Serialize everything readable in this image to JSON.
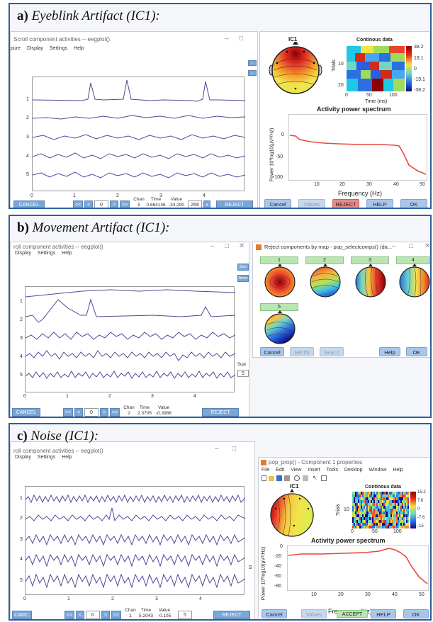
{
  "panel_a": {
    "title_prefix": "a)",
    "title": "Eyeblink Artifact (IC1):",
    "scroll_window": {
      "title": "Scroll component activities -- eegplot()",
      "menu": [
        "pure",
        "Display",
        "Settings",
        "Help"
      ],
      "trace_labels": [
        "1",
        "2",
        "3",
        "4",
        "5"
      ],
      "x_ticks": [
        "0",
        "1",
        "2",
        "3",
        "4"
      ],
      "cancel": "CANCEL",
      "nav": [
        "<<",
        "<",
        "0",
        ">",
        ">>"
      ],
      "stat_headers": [
        "Chan",
        "Time",
        "Value"
      ],
      "stat_values": [
        "5",
        "0.864136",
        "-33.290"
      ],
      "scale_value": "266",
      "reject": "REJECT"
    },
    "props_window": {
      "topo_title": "IC1",
      "continuous_title": "Continous data",
      "trials_label": "Trials",
      "time_label": "Time (ms)",
      "trials_ticks": [
        "10",
        "20"
      ],
      "time_ticks": [
        "0",
        "50",
        "100"
      ],
      "colorbar_ticks": [
        "38.2",
        "19.1",
        "0",
        "-19.1",
        "-38.2"
      ],
      "spectrum_title": "Activity power spectrum",
      "y_label": "Power 10*log10(μV²/Hz)",
      "y_ticks": [
        "0",
        "-50",
        "-100"
      ],
      "x_ticks": [
        "10",
        "20",
        "30",
        "40",
        "50"
      ],
      "x_label": "Frequency (Hz)",
      "buttons": [
        "Cancel",
        "Values",
        "REJECT",
        "HELP",
        "OK"
      ]
    }
  },
  "panel_b": {
    "title_prefix": "b)",
    "title": "Movement Artifact (IC1):",
    "scroll_window": {
      "title": "roll component activities -- eegplot()",
      "menu": [
        "Display",
        "Settings",
        "Help"
      ],
      "trace_labels": [
        "1",
        "2",
        "3",
        "4",
        "5"
      ],
      "x_ticks": [
        "0",
        "1",
        "2",
        "3",
        "4"
      ],
      "cancel": "CANCEL",
      "nav": [
        "<<",
        "<",
        "0",
        ">",
        ">>"
      ],
      "stat_headers": [
        "Chan",
        "Time",
        "Value"
      ],
      "stat_values": [
        "2",
        "2.3705",
        "-0.3988"
      ],
      "reject": "REJECT",
      "side_labels": [
        "Sten",
        "Norm",
        "Scal"
      ],
      "scale_value": "5"
    },
    "map_window": {
      "title": "Reject components by map - pop_selectcomps() (da...",
      "components": [
        "1",
        "2",
        "3",
        "4",
        "5"
      ],
      "buttons": [
        "Cancel",
        "Set thr",
        "Sear c",
        "Help",
        "OK"
      ]
    }
  },
  "panel_c": {
    "title_prefix": "c)",
    "title": "Noise (IC1):",
    "scroll_window": {
      "title": "roll component activities -- eegplot()",
      "menu": [
        "Display",
        "Settings",
        "Help"
      ],
      "trace_labels": [
        "1",
        "2",
        "3",
        "4",
        "5"
      ],
      "x_ticks": [
        "0",
        "1",
        "2",
        "3",
        "4"
      ],
      "cancel": "CANC.",
      "nav": [
        "<<",
        "<",
        "0",
        ">",
        ">>"
      ],
      "stat_headers": [
        "Chan",
        "Time",
        "Value"
      ],
      "stat_values": [
        "1",
        "5.2043",
        "-0.105"
      ],
      "scale_value": "5",
      "reject": "REJECT",
      "side_label": "S"
    },
    "props_window": {
      "title": "pop_prop() - Component 1 properties",
      "menu": [
        "File",
        "Edit",
        "View",
        "Insert",
        "Tools",
        "Desktop",
        "Window",
        "Help"
      ],
      "topo_title": "IC1",
      "continuous_title": "Continous data",
      "trials_label": "Trials",
      "trials_ticks": [
        "10"
      ],
      "time_ticks": [
        "0",
        "50",
        "100"
      ],
      "colorbar_ticks": [
        "15.2",
        "7.6",
        "0",
        "-7.6",
        "-15"
      ],
      "spectrum_title": "Activity power spectrum",
      "y_label": "Power 10*log10(μV²/Hz)",
      "y_ticks": [
        "0",
        "-20",
        "-40",
        "-60",
        "-80"
      ],
      "x_ticks": [
        "10",
        "20",
        "30",
        "40",
        "50"
      ],
      "x_label": "Frequency (Hz)",
      "accept_overlay": "ACCEPT",
      "buttons": [
        "Cancel",
        "Values",
        "HELP",
        "OK"
      ]
    }
  },
  "colors": {
    "frame": "#2f5e9e",
    "trace": "#4a4a9a",
    "spectrum": "#e8473c",
    "reject_red": "#e98a8a",
    "button_blue": "#a9c7ea",
    "nav_blue": "#7aa6d6",
    "component_green": "#b9e6b3"
  }
}
